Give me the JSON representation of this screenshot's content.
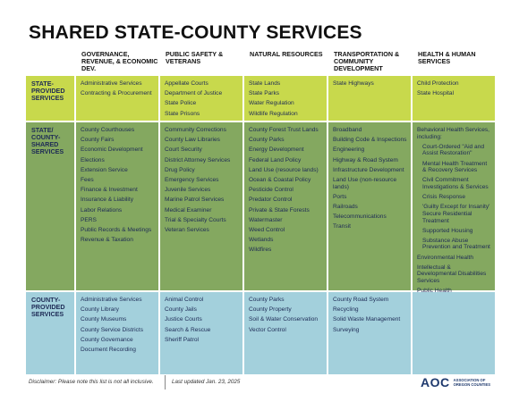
{
  "title": "SHARED STATE-COUNTY SERVICES",
  "columns": [
    "GOVERNANCE, REVENUE, & ECONOMIC DEV.",
    "PUBLIC SAFETY & VETERANS",
    "NATURAL RESOURCES",
    "TRANSPORTATION & COMMUNITY DEVELOPMENT",
    "HEALTH & HUMAN SERVICES"
  ],
  "rows": [
    {
      "label": "STATE-PROVIDED SERVICES",
      "color": "#c8d94c",
      "cells": [
        [
          "Administrative Services",
          "Contracting & Procurement"
        ],
        [
          "Appellate Courts",
          "Department of Justice",
          "State Police",
          "State Prisons"
        ],
        [
          "State Lands",
          "State Parks",
          "Water Regulation",
          "Wildlife Regulation"
        ],
        [
          "State Highways"
        ],
        [
          "Child Protection",
          "State Hospital"
        ]
      ]
    },
    {
      "label": "STATE/ COUNTY-SHARED SERVICES",
      "color": "#84a860",
      "cells": [
        [
          "County Courthouses",
          "County Fairs",
          "Economic Development",
          "Elections",
          "Extension Service",
          "Fees",
          "Finance & Investment",
          "Insurance & Liability",
          "Labor Relations",
          "PERS",
          "Public Records & Meetings",
          "Revenue & Taxation"
        ],
        [
          "Community Corrections",
          "County Law Libraries",
          "Court Security",
          "District Attorney Services",
          "Drug Policy",
          "Emergency Services",
          "Juvenile Services",
          "Marine Patrol Services",
          "Medical Examiner",
          "Trial & Specialty Courts",
          "Veteran Services"
        ],
        [
          "County Forest Trust Lands",
          "County Parks",
          "Energy Development",
          "Federal Land Policy",
          "Land Use (resource lands)",
          "Ocean & Coastal Policy",
          "Pesticide Control",
          "Predator Control",
          "Private & State Forests",
          "Watermaster",
          "Weed Control",
          "Wetlands",
          "Wildfires"
        ],
        [
          "Broadband",
          "Building Code & Inspections",
          "Engineering",
          "Highway & Road System",
          "Infrastructure Development",
          "Land Use (non-resource lands)",
          "Ports",
          "Railroads",
          "Telecommunications",
          "Transit"
        ],
        [
          "Behavioral Health Services, including:",
          "Court-Ordered \"Aid and Assist Restoration\"",
          "Mental Health Treatment & Recovery Services",
          "Civil Commitment Investigations & Services",
          "Crisis Response",
          "'Guilty Except for Insanity' Secure Residential Treatment",
          "Supported Housing",
          "Substance Abuse Prevention and Treatment",
          "Environmental Health",
          "Intellectual & Developmental Disabilities Services",
          "Public Health"
        ]
      ]
    },
    {
      "label": "COUNTY-PROVIDED SERVICES",
      "color": "#a3d0dc",
      "cells": [
        [
          "Administrative Services",
          "County Library",
          "County Museums",
          "County Service Districts",
          "County Governance",
          "Document Recording"
        ],
        [
          "Animal Control",
          "County Jails",
          "Justice Courts",
          "Search & Rescue",
          "Sheriff Patrol"
        ],
        [
          "County Parks",
          "County Property",
          "Soil & Water Conservation",
          "Vector Control"
        ],
        [
          "County Road System",
          "Recycling",
          "Solid Waste Management",
          "Surveying"
        ],
        []
      ]
    }
  ],
  "footer": {
    "disclaimer": "Disclaimer:  Please note this list is not all inclusive.",
    "updated": "Last updated Jan. 23, 2025",
    "logo_mark": "AOC",
    "logo_text": "ASSOCIATION OF OREGON COUNTIES"
  }
}
